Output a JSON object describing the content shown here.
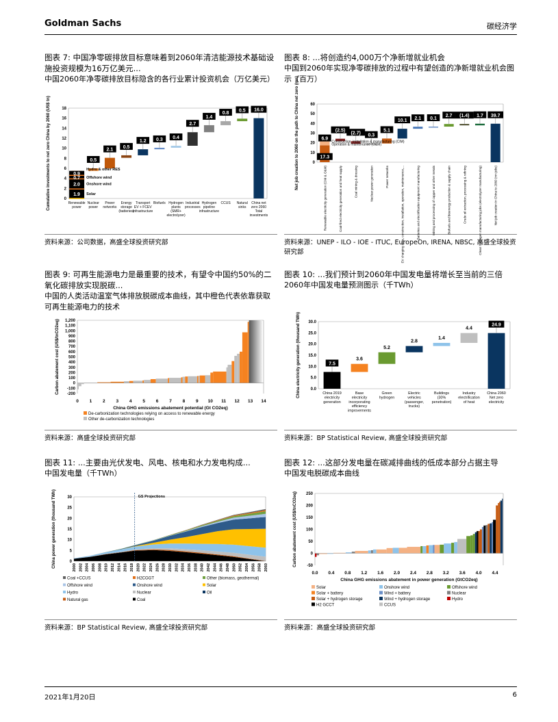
{
  "header": {
    "brand": "Goldman Sachs",
    "section": "碳经济学"
  },
  "footer": {
    "date": "2021年1月20日",
    "page": "6"
  },
  "figures": [
    {
      "title": "图表 7: 中国净零碳排放目标意味着到2060年清洁能源技术基础设施投资规模为16万亿美元...",
      "subtitle": "中国2060年净零碳排放目标隐含的各行业累计投资机会（万亿美元）",
      "source": "资料来源：公司数据，高盛全球投资研究部"
    },
    {
      "title": "图表 8: ...将创造约4,000万个净新增就业机会",
      "subtitle": "中国到2060年实现净零碳排放的过程中有望创造的净新增就业机会图示（百万）",
      "source": "资料来源：UNEP - ILO - IOE - ITUC, EuropeOn, IRENA, NBSC, 高盛全球投资研究部"
    },
    {
      "title": "图表 9: 可再生能源电力是最重要的技术，有望令中国约50%的二氧化碳排放实现脱碳...",
      "subtitle": "中国的人类活动温室气体排放脱碳成本曲线，其中橙色代表依靠获取可再生能源电力的技术",
      "source": "资料来源：高盛全球投资研究部"
    },
    {
      "title": "图表 10: ...我们预计到2060年中国发电量将增长至当前的三倍",
      "subtitle": "2060年中国发电量预测图示（千TWh）",
      "source": "资料来源：BP Statistical Review, 高盛全球投资研究部"
    },
    {
      "title": "图表 11: ...主要由光伏发电、风电、核电和水力发电构成...",
      "subtitle": "中国发电量（千TWh）",
      "source": "资料来源：BP Statistical Review, 高盛全球投资研究部"
    },
    {
      "title": "图表 12: ...这部分发电量在碳减排曲线的低成本部分占据主导",
      "subtitle": "中国发电脱碳成本曲线",
      "source": "资料来源：高盛全球投资研究部"
    }
  ],
  "chart_data": [
    {
      "type": "bar",
      "subtype": "waterfall",
      "ylabel": "Cumulative investments to net zero China by 2060 (US$ tn)",
      "ylim": [
        0,
        18
      ],
      "yticks": [
        0,
        2,
        4,
        6,
        8,
        10,
        12,
        14,
        16,
        18
      ],
      "stack_segments": [
        {
          "name": "Solar",
          "value": 1.9,
          "color": "#f5b800"
        },
        {
          "name": "Onshore wind",
          "value": 2.0,
          "color": "#e87722"
        },
        {
          "name": "Offshore wind",
          "value": 0.7,
          "color": "#e87722"
        },
        {
          "name": "Hydro & other RES",
          "value": 0.9,
          "color": "#e87722"
        }
      ],
      "categories": [
        "Renewable power",
        "Nuclear power",
        "Power networks",
        "Energy storage (batteries)",
        "Transport EV + FCEV infrastructure",
        "Biofuels",
        "Hydrogen plants (SMR+ electrolyzer)",
        "Industrial processes",
        "Hydrogen pipeline infrastructure",
        "CCUS",
        "Natural sinks",
        "China net zero 2060 Total investments"
      ],
      "values": [
        5.5,
        0.5,
        2.1,
        0.5,
        1.2,
        0.3,
        0.4,
        2.7,
        1.4,
        0.8,
        0.5,
        16.0
      ],
      "labels": [
        "",
        "0.5",
        "2.1",
        "0.5",
        "1.2",
        "0.3",
        "0.4",
        "2.7",
        "1.4",
        "0.8",
        "0.5",
        "16.0"
      ],
      "colors": [
        "#000000",
        "#f08020",
        "#c0580a",
        "#8b4513",
        "#0a3560",
        "#6a8fc8",
        "#a8cce8",
        "#303030",
        "#808080",
        "#a8a8a8",
        "#6a9a30",
        "#0a3560"
      ]
    },
    {
      "type": "bar",
      "subtype": "waterfall",
      "ylabel": "Net job creation to 2060 on the path to China net zero (mn)",
      "ylim": [
        0,
        60
      ],
      "yticks": [
        0,
        10,
        20,
        30,
        40,
        50,
        60
      ],
      "stack_segments": [
        {
          "name": "Construction, installation & manufacturing (CIM)",
          "value": 17.3,
          "label": "17.3",
          "color": "#c55a11"
        },
        {
          "name": "Operation & maintenance (O&M)",
          "value": 6.9,
          "label": "6.9",
          "color": "#f4b183"
        }
      ],
      "categories": [
        "Renewable electricity generation (CIM & O&M)",
        "Coal-fired electricity generation and heat supply",
        "Coal mining & dressing",
        "Nuclear power generation",
        "Power networks",
        "EV charging infra, construction, installation, operation, maintenance,...",
        "Batteries and electrification equipment manufacturing",
        "Mining and processing of copper and other metals",
        "Biofuels and bioenergy production & supply chain",
        "Crude oil extraction, processing & refining",
        "Clean hydrogen manufacturing jobs (electrolyzer manufacturing)",
        "Net job creation in China to 2060 (mn jobs)"
      ],
      "values": [
        24.2,
        -2.5,
        -2.7,
        0.3,
        5.1,
        10.1,
        2.1,
        0.1,
        2.7,
        -1.4,
        1.7,
        39.7
      ],
      "labels": [
        "",
        "(2.5)",
        "(2.7)",
        "0.3",
        "5.1",
        "10.1",
        "2.1",
        "0.1",
        "2.7",
        "(1.4)",
        "1.7",
        "39.7"
      ],
      "colors": [
        "#c55a11",
        "#7b1f1f",
        "#8b2a2a",
        "#a0a0a0",
        "#c55a11",
        "#0a3560",
        "#4a78b8",
        "#6a8fc8",
        "#6a9a30",
        "#4a4a2a",
        "#1a6a3a",
        "#0a3560"
      ]
    },
    {
      "type": "bar",
      "subtype": "marginal-abatement-cost-curve",
      "xlabel": "China GHG emissions abatement potential  (Gt CO2eq)",
      "ylabel": "Carbon abatement cost (US$/tnCO2eq)",
      "xlim": [
        0,
        14
      ],
      "ylim": [
        -200,
        1200
      ],
      "xticks": [
        0,
        1,
        2,
        3,
        4,
        5,
        6,
        7,
        8,
        9,
        10,
        11,
        12,
        13,
        14
      ],
      "yticks": [
        -200,
        -100,
        0,
        100,
        200,
        300,
        400,
        500,
        600,
        700,
        800,
        900,
        1000,
        1100,
        1200
      ],
      "legend": [
        {
          "name": "De-carbonization technologies relying on access to renewable energy",
          "color": "#f58220"
        },
        {
          "name": "Other de-carbonization technologies",
          "color": "#bfbfbf"
        }
      ],
      "segments": [
        [
          0,
          0.1,
          -120,
          1
        ],
        [
          0.1,
          0.3,
          -60,
          1
        ],
        [
          0.3,
          0.5,
          -20,
          1
        ],
        [
          0.5,
          1.5,
          5,
          1
        ],
        [
          1.5,
          2.5,
          15,
          0
        ],
        [
          2.5,
          3.5,
          25,
          0
        ],
        [
          3.5,
          3.9,
          35,
          1
        ],
        [
          3.9,
          4.2,
          40,
          0
        ],
        [
          4.2,
          4.9,
          45,
          1
        ],
        [
          4.9,
          5.0,
          50,
          0
        ],
        [
          5.0,
          5.5,
          60,
          1
        ],
        [
          5.5,
          5.9,
          75,
          0
        ],
        [
          5.9,
          6.8,
          85,
          1
        ],
        [
          6.8,
          6.9,
          95,
          0
        ],
        [
          6.9,
          7.8,
          100,
          1
        ],
        [
          7.8,
          7.9,
          110,
          0
        ],
        [
          7.9,
          8.1,
          120,
          1
        ],
        [
          8.1,
          8.3,
          125,
          0
        ],
        [
          8.3,
          9.0,
          130,
          1
        ],
        [
          9.0,
          9.1,
          135,
          0
        ],
        [
          9.1,
          9.2,
          140,
          1
        ],
        [
          9.2,
          9.6,
          145,
          0
        ],
        [
          9.6,
          10.0,
          150,
          1
        ],
        [
          10.0,
          10.2,
          200,
          0
        ],
        [
          10.2,
          11.2,
          220,
          0
        ],
        [
          11.2,
          11.3,
          300,
          1
        ],
        [
          11.3,
          11.6,
          350,
          1
        ],
        [
          11.6,
          11.8,
          420,
          0
        ],
        [
          11.8,
          12.0,
          520,
          1
        ],
        [
          12.0,
          12.2,
          560,
          1
        ],
        [
          12.2,
          12.4,
          600,
          0
        ],
        [
          12.4,
          12.8,
          970,
          0
        ],
        [
          12.8,
          12.9,
          1170,
          0
        ],
        [
          12.9,
          13.9,
          1200,
          1
        ]
      ]
    },
    {
      "type": "bar",
      "subtype": "waterfall",
      "ylabel": "China electricity generation (thousand TWh)",
      "ylim": [
        0,
        30
      ],
      "yticks": [
        "0.0",
        "5.0",
        "10.0",
        "15.0",
        "20.0",
        "25.0",
        "30.0"
      ],
      "categories": [
        "China 2019 electricity generation",
        "Base electricity incorporating efficiency improvements",
        "Green hydrogen",
        "Electric vehicles (passenger, trucks)",
        "Buildings (30% penetration)",
        "Industry electrification of heat",
        "China 2060 Net zero electricity"
      ],
      "values": [
        7.5,
        3.6,
        5.2,
        2.8,
        1.4,
        4.4,
        24.9
      ],
      "labels": [
        "7.5",
        "3.6",
        "5.2",
        "2.8",
        "1.4",
        "4.4",
        "24.9"
      ],
      "colors": [
        "#000000",
        "#f58220",
        "#6a9a30",
        "#0a3560",
        "#8ec3ea",
        "#bfbfbf",
        "#0a3560"
      ]
    },
    {
      "type": "area",
      "stacked": true,
      "ylabel": "China power generation (thousand TWh)",
      "ylim": [
        0,
        30
      ],
      "yticks": [
        0,
        5,
        10,
        15,
        20,
        25,
        30
      ],
      "annotation": "GS Projections",
      "projection_start": 2019,
      "x": [
        2000,
        2005,
        2010,
        2015,
        2019,
        2025,
        2030,
        2035,
        2040,
        2045,
        2050,
        2055,
        2060
      ],
      "xticks": [
        2000,
        2002,
        2004,
        2006,
        2008,
        2010,
        2012,
        2014,
        2016,
        2018,
        2020,
        2022,
        2024,
        2026,
        2028,
        2030,
        2032,
        2034,
        2036,
        2038,
        2040,
        2042,
        2044,
        2046,
        2048,
        2050,
        2052,
        2054,
        2056,
        2058,
        2060
      ],
      "series": [
        {
          "name": "Coal",
          "color": "#000000",
          "values": [
            1.1,
            2.0,
            3.2,
            4.1,
            4.9,
            5.2,
            4.8,
            4.2,
            3.5,
            2.8,
            2.0,
            1.0,
            0
          ]
        },
        {
          "name": "Natural gas",
          "color": "#c55a11",
          "values": [
            0,
            0,
            0.1,
            0.1,
            0.2,
            0.3,
            0.4,
            0.4,
            0.4,
            0.3,
            0.3,
            0.2,
            0.1
          ]
        },
        {
          "name": "Oil",
          "color": "#0a3560",
          "values": [
            0.05,
            0.05,
            0.05,
            0.05,
            0.05,
            0.03,
            0.02,
            0,
            0,
            0,
            0,
            0,
            0
          ]
        },
        {
          "name": "Nuclear",
          "color": "#bfbfbf",
          "values": [
            0,
            0.05,
            0.1,
            0.2,
            0.35,
            0.5,
            0.8,
            1.0,
            1.2,
            1.4,
            1.6,
            1.8,
            2.0
          ]
        },
        {
          "name": "Hydro",
          "color": "#8ec3ea",
          "values": [
            0.2,
            0.4,
            0.7,
            1.1,
            1.3,
            1.8,
            2.2,
            2.6,
            3.0,
            3.5,
            3.8,
            4.0,
            4.2
          ]
        },
        {
          "name": "Solar",
          "color": "#ffc000",
          "values": [
            0,
            0,
            0,
            0.05,
            0.2,
            0.8,
            1.8,
            3.0,
            4.5,
            6.0,
            7.2,
            8.0,
            8.8
          ]
        },
        {
          "name": "Onshore wind",
          "color": "#2e5b8a",
          "values": [
            0,
            0,
            0.05,
            0.2,
            0.4,
            1.0,
            1.8,
            2.6,
            3.3,
            3.8,
            4.5,
            5.0,
            5.5
          ]
        },
        {
          "name": "Offshore wind",
          "color": "#a9c4e6",
          "values": [
            0,
            0,
            0,
            0,
            0.01,
            0.05,
            0.1,
            0.2,
            0.4,
            0.6,
            0.9,
            1.2,
            1.5
          ]
        },
        {
          "name": "Other (biomass, geothermal)",
          "color": "#70a040",
          "values": [
            0,
            0,
            0.03,
            0.05,
            0.1,
            0.15,
            0.2,
            0.3,
            0.4,
            0.5,
            0.7,
            0.9,
            1.2
          ]
        },
        {
          "name": "H2CGGT",
          "color": "#e0701a",
          "values": [
            0,
            0,
            0,
            0,
            0,
            0,
            0.05,
            0.1,
            0.15,
            0.2,
            0.3,
            0.4,
            0.5
          ]
        },
        {
          "name": "Coal +CCUS",
          "color": "#606060",
          "values": [
            0,
            0,
            0,
            0,
            0,
            0.02,
            0.05,
            0.1,
            0.15,
            0.2,
            0.3,
            0.4,
            0.5
          ]
        }
      ],
      "legend_order": [
        "Coal +CCUS",
        "H2CGGT",
        "Other (biomass, geothermal)",
        "Offshore wind",
        "Onshore wind",
        "Solar",
        "Hydro",
        "Nuclear",
        "Oil",
        "Natural gas",
        "Coal"
      ]
    },
    {
      "type": "bar",
      "subtype": "marginal-abatement-cost-curve",
      "xlabel": "China GHG emissions abatement in power generation (GtCO2eq)",
      "ylabel": "Carbon abatement cost (US$/tnCO2eq)",
      "xlim": [
        0,
        4.6
      ],
      "ylim": [
        -50,
        250
      ],
      "xticks": [
        "0.0",
        "0.4",
        "0.8",
        "1.2",
        "1.6",
        "2.0",
        "2.4",
        "2.8",
        "3.2",
        "3.6",
        "4.0",
        "4.4"
      ],
      "yticks": [
        -50,
        0,
        50,
        100,
        150,
        200,
        250
      ],
      "legend": [
        {
          "name": "Solar",
          "color": "#f4b183"
        },
        {
          "name": "Onshore wind",
          "color": "#8ec3ea"
        },
        {
          "name": "Offshore wind",
          "color": "#6a9a30"
        },
        {
          "name": "Solar + battery",
          "color": "#f58220"
        },
        {
          "name": "Wind + battery",
          "color": "#6a8fc8"
        },
        {
          "name": "Nuclear",
          "color": "#7f7f7f"
        },
        {
          "name": "Solar + hydrogen storage",
          "color": "#c55a11"
        },
        {
          "name": "Wind + hydrogen storage",
          "color": "#0a3560"
        },
        {
          "name": "Hydro",
          "color": "#c00000"
        },
        {
          "name": "H2 GCCT",
          "color": "#000000"
        },
        {
          "name": "CCUS",
          "color": "#bfbfbf"
        }
      ],
      "segments": [
        [
          0,
          0.04,
          -15,
          8
        ],
        [
          0.04,
          0.1,
          -8,
          5
        ],
        [
          0.1,
          0.3,
          -3,
          0
        ],
        [
          0.3,
          0.45,
          -2,
          1
        ],
        [
          0.45,
          0.75,
          2,
          0
        ],
        [
          0.75,
          0.9,
          4,
          1
        ],
        [
          0.9,
          0.98,
          7,
          5
        ],
        [
          0.98,
          1.3,
          10,
          0
        ],
        [
          1.3,
          1.37,
          12,
          1
        ],
        [
          1.37,
          1.42,
          13,
          5
        ],
        [
          1.42,
          1.5,
          16,
          1
        ],
        [
          1.5,
          1.75,
          16,
          0
        ],
        [
          1.75,
          1.9,
          22,
          0
        ],
        [
          1.9,
          2.05,
          23,
          1
        ],
        [
          2.05,
          2.25,
          23,
          0
        ],
        [
          2.25,
          2.58,
          27,
          0
        ],
        [
          2.58,
          2.63,
          30,
          2
        ],
        [
          2.63,
          2.72,
          30,
          1
        ],
        [
          2.72,
          2.78,
          33,
          3
        ],
        [
          2.78,
          2.88,
          34,
          1
        ],
        [
          2.88,
          2.92,
          35,
          4
        ],
        [
          2.92,
          3.05,
          35,
          0
        ],
        [
          3.05,
          3.15,
          36,
          2
        ],
        [
          3.15,
          3.33,
          41,
          1
        ],
        [
          3.33,
          3.4,
          44,
          2
        ],
        [
          3.4,
          3.48,
          47,
          1
        ],
        [
          3.48,
          3.7,
          60,
          10
        ],
        [
          3.7,
          3.8,
          72,
          2
        ],
        [
          3.8,
          3.86,
          75,
          2
        ],
        [
          3.86,
          3.91,
          81,
          2
        ],
        [
          3.91,
          3.95,
          88,
          7
        ],
        [
          3.95,
          3.99,
          93,
          9
        ],
        [
          3.99,
          4.03,
          93,
          6
        ],
        [
          4.03,
          4.08,
          100,
          6
        ],
        [
          4.08,
          4.12,
          110,
          4
        ],
        [
          4.12,
          4.17,
          116,
          9
        ],
        [
          4.17,
          4.22,
          118,
          5
        ],
        [
          4.22,
          4.27,
          123,
          6
        ],
        [
          4.27,
          4.32,
          125,
          7
        ],
        [
          4.32,
          4.35,
          130,
          4
        ],
        [
          4.35,
          4.42,
          140,
          9
        ],
        [
          4.42,
          4.47,
          200,
          6
        ],
        [
          4.47,
          4.5,
          210,
          6
        ],
        [
          4.5,
          4.53,
          215,
          6
        ],
        [
          4.53,
          4.57,
          220,
          7
        ],
        [
          4.57,
          4.59,
          228,
          7
        ]
      ]
    }
  ]
}
